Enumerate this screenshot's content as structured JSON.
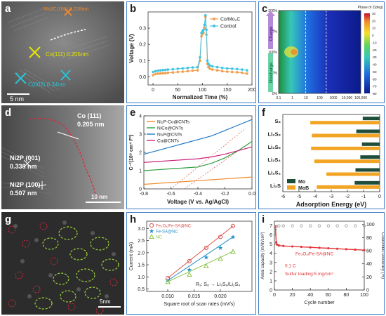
{
  "panels": {
    "a": {
      "letter": "a",
      "labels": [
        "Mo2C(101) 0.228nm",
        "Co(111) 0.205nm",
        "C(002) 0.34nm"
      ],
      "scale": "5 nm"
    },
    "b": {
      "letter": "b"
    },
    "c": {
      "letter": "c"
    },
    "d": {
      "letter": "d",
      "labels": [
        "Co (111)",
        "0.205 nm",
        "Ni2P (001)",
        "0.338 nm",
        "Ni2P (100)",
        "0.507 nm"
      ],
      "scale": "10 nm"
    },
    "e": {
      "letter": "e"
    },
    "f": {
      "letter": "f"
    },
    "g": {
      "letter": "g",
      "scale": "5nm"
    },
    "h": {
      "letter": "h"
    },
    "i": {
      "letter": "i"
    }
  },
  "chart_data": [
    {
      "id": "b",
      "type": "line",
      "xlabel": "Normalized Time (%)",
      "ylabel": "Voltage (V)",
      "xlim": [
        -10,
        200
      ],
      "ylim": [
        -0.05,
        0.4
      ],
      "xticks": [
        0,
        50,
        100,
        150,
        200
      ],
      "yticks": [
        0.0,
        0.1,
        0.2,
        0.3
      ],
      "legend": "top-right",
      "series": [
        {
          "name": "Co/Mo₂C",
          "color": "#f39c4a",
          "x": [
            0,
            5,
            10,
            15,
            20,
            25,
            30,
            40,
            50,
            60,
            70,
            80,
            90,
            95,
            98,
            100,
            102,
            104,
            106,
            108,
            110,
            112,
            115,
            120,
            130,
            140,
            150,
            160,
            170,
            180,
            190
          ],
          "y": [
            0.01,
            0.018,
            0.02,
            0.021,
            0.022,
            0.023,
            0.025,
            0.027,
            0.03,
            0.032,
            0.035,
            0.038,
            0.04,
            0.1,
            0.25,
            0.265,
            0.27,
            0.3,
            0.37,
            0.26,
            0.08,
            0.06,
            0.05,
            0.045,
            0.04,
            0.035,
            0.032,
            0.03,
            0.028,
            0.025,
            0.02
          ]
        },
        {
          "name": "Control",
          "color": "#3ec4e0",
          "x": [
            0,
            5,
            10,
            15,
            20,
            25,
            30,
            40,
            50,
            60,
            70,
            80,
            90,
            95,
            98,
            100,
            102,
            104,
            106,
            108,
            110,
            112,
            115,
            120,
            130,
            140,
            150,
            160,
            170,
            180,
            190
          ],
          "y": [
            0.03,
            0.035,
            0.038,
            0.04,
            0.042,
            0.043,
            0.045,
            0.047,
            0.05,
            0.052,
            0.055,
            0.058,
            0.06,
            0.12,
            0.27,
            0.28,
            0.29,
            0.32,
            0.38,
            0.29,
            0.1,
            0.08,
            0.07,
            0.065,
            0.06,
            0.055,
            0.052,
            0.05,
            0.048,
            0.045,
            0.04
          ]
        }
      ]
    },
    {
      "id": "c",
      "type": "heatmap",
      "title": "Phase of Z(deg)",
      "xlabel": "",
      "ylabel": "",
      "xticks": [
        "0.1",
        "1",
        "10",
        "100",
        "1000",
        "10,000",
        "100,000"
      ],
      "yticks": [
        "0%",
        "50%",
        "100%",
        "150%",
        "200%"
      ],
      "colorbar": [
        -80,
        -70,
        -60,
        -50,
        -40,
        -30,
        -20,
        -10,
        0,
        10,
        20,
        30
      ],
      "side_labels": [
        "Charge",
        "Discharge"
      ]
    },
    {
      "id": "e",
      "type": "line",
      "xlabel": "Voltage (V vs. Ag/AgCl)",
      "ylabel": "C⁻²(10⁸ cm⁴ F²)",
      "xlim": [
        -0.8,
        0.0
      ],
      "ylim": [
        0,
        4
      ],
      "xticks": [
        -0.8,
        -0.6,
        -0.4,
        -0.2,
        0.0
      ],
      "yticks": [
        0,
        1,
        2,
        3,
        4
      ],
      "legend": "top-left",
      "series": [
        {
          "name": "Ni₂P-Co@CNTs",
          "color": "#f08a2c",
          "x": [
            -0.8,
            -0.7,
            -0.6,
            -0.5,
            -0.4,
            -0.3,
            -0.2,
            -0.1,
            0.0
          ],
          "y": [
            0.25,
            0.3,
            0.35,
            0.4,
            0.45,
            0.5,
            0.55,
            0.6,
            0.65
          ]
        },
        {
          "name": "NiCo@CNTs",
          "color": "#2e9e3e",
          "x": [
            -0.8,
            -0.7,
            -0.6,
            -0.5,
            -0.4,
            -0.3,
            -0.2,
            -0.1,
            0.0
          ],
          "y": [
            1.0,
            1.05,
            1.1,
            1.15,
            1.2,
            1.4,
            1.7,
            2.1,
            2.6
          ]
        },
        {
          "name": "Ni₂P@CNTs",
          "color": "#1f78c8",
          "x": [
            -0.8,
            -0.7,
            -0.6,
            -0.5,
            -0.4,
            -0.3,
            -0.2,
            -0.1,
            0.0
          ],
          "y": [
            1.9,
            2.1,
            2.3,
            2.5,
            2.7,
            2.9,
            3.2,
            3.5,
            3.8
          ]
        },
        {
          "name": "Co@CNTs",
          "color": "#c8207a",
          "x": [
            -0.8,
            -0.7,
            -0.6,
            -0.5,
            -0.4,
            -0.3,
            -0.2,
            -0.1,
            0.0
          ],
          "y": [
            1.45,
            1.5,
            1.55,
            1.6,
            1.65,
            1.75,
            1.9,
            2.1,
            2.3
          ]
        }
      ]
    },
    {
      "id": "f",
      "type": "bar",
      "xlabel": "Adsorption Energy (eV)",
      "ylabel": "",
      "xlim": [
        -6,
        0
      ],
      "xticks": [
        -6,
        -5,
        -4,
        -3,
        -2,
        -1,
        0
      ],
      "categories": [
        "S₈",
        "Li₂S₈",
        "Li₂S₆",
        "Li₂S₄",
        "Li₂S₂",
        "Li₂S"
      ],
      "legend": "bottom-left",
      "series": [
        {
          "name": "Mo",
          "color": "#1e4d3a",
          "values": [
            -1.05,
            -1.45,
            -1.1,
            -1.2,
            -1.5,
            -1.55
          ]
        },
        {
          "name": "MoB",
          "color": "#f2a524",
          "values": [
            -4.3,
            -4.2,
            -4.25,
            -4.05,
            -3.3,
            -3.9
          ]
        }
      ]
    },
    {
      "id": "h",
      "type": "scatter",
      "xlabel": "Square root of scan rates (mV/s)",
      "ylabel": "Current (mA)",
      "xlim": [
        0.006,
        0.026
      ],
      "ylim": [
        0.4,
        3.3
      ],
      "xticks": [
        0.01,
        0.015,
        0.02
      ],
      "yticks": [
        0.5,
        1.0,
        1.5,
        2.0,
        2.5,
        3.0
      ],
      "legend": "top-left",
      "annotation": "R₁: S₈ → Li₂S₈/Li₂S₄",
      "series": [
        {
          "name": "Fe₃O₄/Fe-SA@NC",
          "color": "#d9534f",
          "marker": "circle",
          "x": [
            0.01,
            0.0141,
            0.0173,
            0.02,
            0.0224
          ],
          "y": [
            0.95,
            1.65,
            2.2,
            2.65,
            3.1
          ]
        },
        {
          "name": "Fe-SA@NC",
          "color": "#1f8ec8",
          "marker": "star",
          "x": [
            0.01,
            0.0141,
            0.0173,
            0.02,
            0.0224
          ],
          "y": [
            0.85,
            1.3,
            1.8,
            2.2,
            2.65
          ]
        },
        {
          "name": "NC",
          "color": "#8bc34a",
          "marker": "triangle",
          "x": [
            0.01,
            0.0141,
            0.0173,
            0.02,
            0.0224
          ],
          "y": [
            0.8,
            1.1,
            1.45,
            1.75,
            2.05
          ]
        }
      ]
    },
    {
      "id": "i",
      "type": "scatter",
      "xlabel": "Cycle number",
      "ylabel": "Areal capacity (mAh/cm²)",
      "ylabel2": "Coulombic efficiency (%)",
      "xlim": [
        0,
        100
      ],
      "ylim": [
        0,
        7.5
      ],
      "ylim2": [
        0,
        105
      ],
      "xticks": [
        0,
        20,
        40,
        60,
        80,
        100
      ],
      "yticks": [
        0,
        1,
        2,
        3,
        4,
        5,
        6,
        7
      ],
      "yticks2": [
        0,
        20,
        40,
        60,
        80,
        100
      ],
      "annotations": [
        "Fe₃O₄/Fe-SA@NC",
        "0.1 C",
        "Sulfur loading:5 mg/cm²"
      ],
      "series": [
        {
          "name": "Capacity",
          "color": "#e4363b",
          "x": [
            1,
            2,
            3,
            5,
            10,
            20,
            30,
            40,
            50,
            60,
            70,
            80,
            90,
            100
          ],
          "y": [
            6.9,
            5.2,
            4.95,
            4.85,
            4.8,
            4.75,
            4.7,
            4.65,
            4.6,
            4.55,
            4.5,
            4.45,
            4.4,
            4.35
          ]
        },
        {
          "name": "Coulombic efficiency",
          "color": "#9e9e9e",
          "x": [
            1,
            2,
            5,
            10,
            20,
            30,
            40,
            50,
            60,
            70,
            80,
            90,
            100
          ],
          "y": [
            92,
            97,
            98,
            98,
            98,
            98,
            98,
            98,
            98,
            98,
            98,
            98,
            98
          ]
        }
      ]
    }
  ]
}
